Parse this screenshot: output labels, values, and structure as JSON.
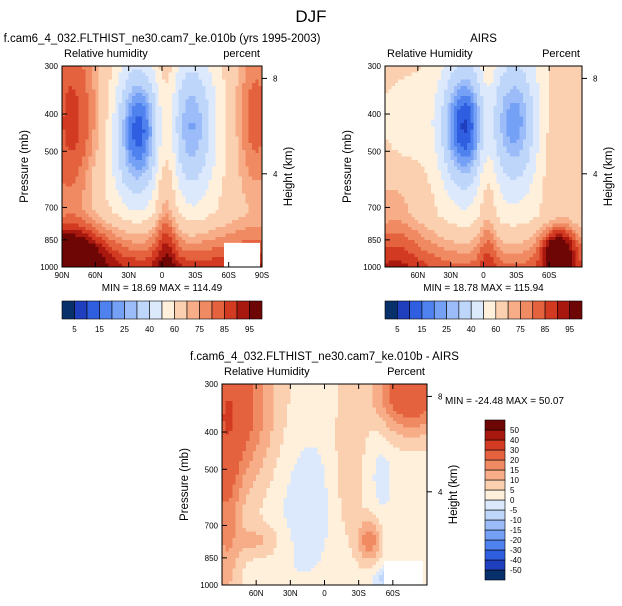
{
  "figure": {
    "title": "DJF",
    "colors": {
      "frame": "#000000",
      "missing": "#ffffff"
    }
  },
  "chart_data": [
    {
      "type": "heatmap",
      "title": "f.cam6_4_032.FLTHIST_ne30.cam7_ke.010b (yrs 1995-2003)",
      "left_label": "Relative humidity",
      "right_label": "percent",
      "ylabel": "Pressure (mb)",
      "y2label": "Height (km)",
      "x_ticks": [
        "90N",
        "60N",
        "30N",
        "0",
        "30S",
        "60S",
        "90S"
      ],
      "y_ticks": [
        "300",
        "400",
        "500",
        "700",
        "850",
        "1000"
      ],
      "y2_ticks": [
        "8",
        "4"
      ],
      "stats": "MIN = 18.69  MAX = 114.49",
      "min": 18.69,
      "max": 114.49,
      "xlim": [
        90,
        -90
      ],
      "ylim": [
        1000,
        300
      ],
      "y_scale": "log",
      "colorbar": {
        "orientation": "horizontal",
        "levels": [
          "5",
          "10",
          "15",
          "20",
          "25",
          "30",
          "40",
          "50",
          "60",
          "70",
          "75",
          "80",
          "85",
          "90",
          "95"
        ],
        "labels": [
          "5",
          "15",
          "25",
          "40",
          "60",
          "75",
          "85",
          "95"
        ],
        "colors": [
          "#08306b",
          "#1f3fbf",
          "#2f5fe0",
          "#4f81ef",
          "#74a0f5",
          "#9bbcf8",
          "#bfd6fb",
          "#dce9fd",
          "#fff0dc",
          "#fbd0b0",
          "#f7ad88",
          "#f08a62",
          "#e5623f",
          "#d23b22",
          "#a9180e",
          "#6e0606"
        ]
      }
    },
    {
      "type": "heatmap",
      "title": "AIRS",
      "left_label": "Relative Humidity",
      "right_label": "Percent",
      "ylabel": "Pressure (mb)",
      "y2label": "Height (km)",
      "x_ticks": [
        "60N",
        "30N",
        "0",
        "30S",
        "60S"
      ],
      "y_ticks": [
        "300",
        "400",
        "500",
        "700",
        "850",
        "1000"
      ],
      "y2_ticks": [
        "8",
        "4"
      ],
      "stats": "MIN = 18.78  MAX = 115.94",
      "min": 18.78,
      "max": 115.94,
      "xlim": [
        90,
        -90
      ],
      "ylim": [
        1000,
        300
      ],
      "y_scale": "log",
      "colorbar": {
        "orientation": "horizontal",
        "levels": [
          "5",
          "10",
          "15",
          "20",
          "25",
          "30",
          "40",
          "50",
          "60",
          "70",
          "75",
          "80",
          "85",
          "90",
          "95"
        ],
        "labels": [
          "5",
          "15",
          "25",
          "40",
          "60",
          "75",
          "85",
          "95"
        ],
        "colors": [
          "#08306b",
          "#1f3fbf",
          "#2f5fe0",
          "#4f81ef",
          "#74a0f5",
          "#9bbcf8",
          "#bfd6fb",
          "#dce9fd",
          "#fff0dc",
          "#fbd0b0",
          "#f7ad88",
          "#f08a62",
          "#e5623f",
          "#d23b22",
          "#a9180e",
          "#6e0606"
        ]
      }
    },
    {
      "type": "heatmap",
      "title": "f.cam6_4_032.FLTHIST_ne30.cam7_ke.010b - AIRS",
      "left_label": "Relative Humidity",
      "right_label": "Percent",
      "ylabel": "Pressure (mb)",
      "y2label": "Height (km)",
      "x_ticks": [
        "60N",
        "30N",
        "0",
        "30S",
        "60S"
      ],
      "y_ticks": [
        "300",
        "400",
        "500",
        "700",
        "850",
        "1000"
      ],
      "y2_ticks": [
        "8",
        "4"
      ],
      "stats": "MIN = -24.48   MAX =  50.07",
      "min": -24.48,
      "max": 50.07,
      "xlim": [
        90,
        -90
      ],
      "ylim": [
        1000,
        300
      ],
      "y_scale": "log",
      "colorbar": {
        "orientation": "vertical",
        "levels": [
          "-50",
          "-40",
          "-30",
          "-20",
          "-15",
          "-10",
          "-5",
          "0",
          "5",
          "10",
          "15",
          "20",
          "30",
          "40",
          "50"
        ],
        "labels": [
          "-50",
          "-40",
          "-30",
          "-20",
          "-15",
          "-10",
          "-5",
          "0",
          "5",
          "10",
          "15",
          "20",
          "30",
          "40",
          "50"
        ],
        "colors": [
          "#08306b",
          "#1f3fbf",
          "#2f5fe0",
          "#4f81ef",
          "#74a0f5",
          "#9bbcf8",
          "#bfd6fb",
          "#dce9fd",
          "#fff0dc",
          "#fbd0b0",
          "#f7ad88",
          "#f08a62",
          "#e5623f",
          "#d23b22",
          "#a9180e",
          "#6e0606"
        ]
      }
    }
  ]
}
